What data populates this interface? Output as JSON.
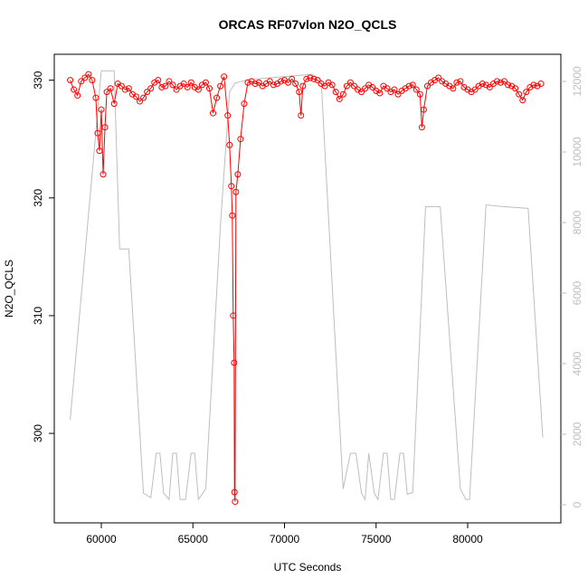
{
  "chart_data": {
    "type": "line",
    "title": "ORCAS RF07vlon N2O_QCLS",
    "xlabel": "UTC Seconds",
    "ylabel": "N2O_QCLS",
    "xlim": [
      57432,
      85086
    ],
    "ylim": [
      292.4,
      332.2
    ],
    "y2lim": [
      -513,
      12769
    ],
    "xticks": [
      60000,
      65000,
      70000,
      75000,
      80000
    ],
    "yticks": [
      300,
      310,
      320,
      330
    ],
    "y2ticks": [
      0,
      2000,
      4000,
      6000,
      8000,
      10000,
      12000
    ],
    "series": [
      {
        "color": "#ff0000",
        "markers": true,
        "x": [
          58300,
          58500,
          58700,
          58900,
          59100,
          59300,
          59500,
          59700,
          59800,
          59900,
          60000,
          60100,
          60200,
          60300,
          60500,
          60700,
          60900,
          61100,
          61300,
          61500,
          61700,
          61900,
          62100,
          62300,
          62500,
          62700,
          62900,
          63100,
          63300,
          63500,
          63700,
          63900,
          64100,
          64300,
          64500,
          64700,
          64900,
          65100,
          65300,
          65500,
          65700,
          65900,
          66100,
          66300,
          66500,
          66700,
          66900,
          67000,
          67100,
          67150,
          67200,
          67250,
          67270,
          67300,
          67350,
          67450,
          67600,
          67800,
          68000,
          68200,
          68400,
          68600,
          68800,
          69000,
          69200,
          69400,
          69600,
          69800,
          70000,
          70200,
          70400,
          70600,
          70800,
          70900,
          71000,
          71200,
          71400,
          71600,
          71800,
          72000,
          72200,
          72400,
          72600,
          72800,
          73000,
          73200,
          73400,
          73600,
          73800,
          74000,
          74200,
          74400,
          74600,
          74800,
          75000,
          75200,
          75400,
          75600,
          75800,
          76000,
          76200,
          76400,
          76600,
          76800,
          77000,
          77200,
          77400,
          77500,
          77600,
          77800,
          78000,
          78200,
          78400,
          78600,
          78800,
          79000,
          79200,
          79400,
          79600,
          79800,
          80000,
          80200,
          80400,
          80600,
          80800,
          81000,
          81200,
          81400,
          81600,
          81800,
          82000,
          82200,
          82400,
          82600,
          82800,
          83000,
          83200,
          83400,
          83600,
          83800,
          84000
        ],
        "values": [
          330,
          329.2,
          328.7,
          329.9,
          330.2,
          330.5,
          330,
          328.5,
          325.5,
          324,
          327.5,
          322,
          326,
          329,
          329.3,
          328,
          329.7,
          329.5,
          329.2,
          329.3,
          328.8,
          328.6,
          328.2,
          328.5,
          329,
          329.3,
          329.8,
          330,
          329.4,
          329.5,
          329.9,
          329.6,
          329.2,
          329.5,
          329.7,
          329.4,
          329.8,
          329.4,
          329.2,
          329.6,
          329.8,
          329.3,
          327.2,
          328.5,
          329.5,
          330.3,
          327,
          324.5,
          321,
          318.5,
          310,
          306,
          295,
          294.2,
          320.5,
          322,
          325,
          328,
          329.8,
          329.9,
          329.7,
          329.8,
          329.5,
          329.7,
          329.9,
          329.6,
          329.7,
          329.9,
          330,
          329.8,
          330.1,
          329.7,
          329,
          327,
          329.5,
          330.1,
          330.2,
          330.1,
          330,
          329.7,
          329.5,
          329.8,
          329.6,
          329,
          328.4,
          328.8,
          329.5,
          329.8,
          329.5,
          329.2,
          329,
          329.3,
          329.6,
          329.4,
          329.1,
          328.9,
          329.5,
          329.3,
          329,
          329.2,
          328.8,
          329.1,
          329.3,
          329.5,
          329.6,
          329.2,
          328.8,
          326,
          327.5,
          329.5,
          329.8,
          330,
          330.2,
          329.9,
          329.7,
          329.5,
          329.3,
          329.8,
          329.9,
          329.4,
          329.2,
          329,
          329.2,
          329.5,
          329.7,
          329.6,
          329.4,
          329.7,
          329.9,
          329.8,
          329.9,
          329.6,
          329.5,
          329.3,
          328.8,
          328.3,
          329,
          329.4,
          329.6,
          329.5,
          329.7
        ]
      },
      {
        "color": "#bebebe",
        "axis": "y2",
        "markers": false,
        "x": [
          58300,
          60000,
          60700,
          61000,
          61500,
          62300,
          62700,
          63000,
          63200,
          63400,
          63700,
          63900,
          64100,
          64300,
          64600,
          64900,
          65100,
          65300,
          65700,
          66500,
          67000,
          67300,
          68000,
          71500,
          72000,
          73200,
          73600,
          73900,
          74200,
          74400,
          74600,
          74900,
          75100,
          75400,
          75600,
          75800,
          76000,
          76300,
          76500,
          76700,
          77000,
          77700,
          78500,
          79600,
          79900,
          80100,
          81000,
          82000,
          83300,
          84100
        ],
        "values": [
          2400,
          12300,
          12300,
          7250,
          7250,
          330,
          200,
          1460,
          1460,
          330,
          150,
          1460,
          1460,
          150,
          150,
          1460,
          1460,
          150,
          450,
          7900,
          11700,
          11950,
          12050,
          12200,
          12050,
          450,
          1460,
          1460,
          330,
          150,
          1460,
          330,
          150,
          1460,
          1460,
          150,
          150,
          1460,
          1460,
          300,
          350,
          8450,
          8450,
          450,
          150,
          150,
          8500,
          8450,
          8400,
          1900
        ]
      }
    ]
  }
}
